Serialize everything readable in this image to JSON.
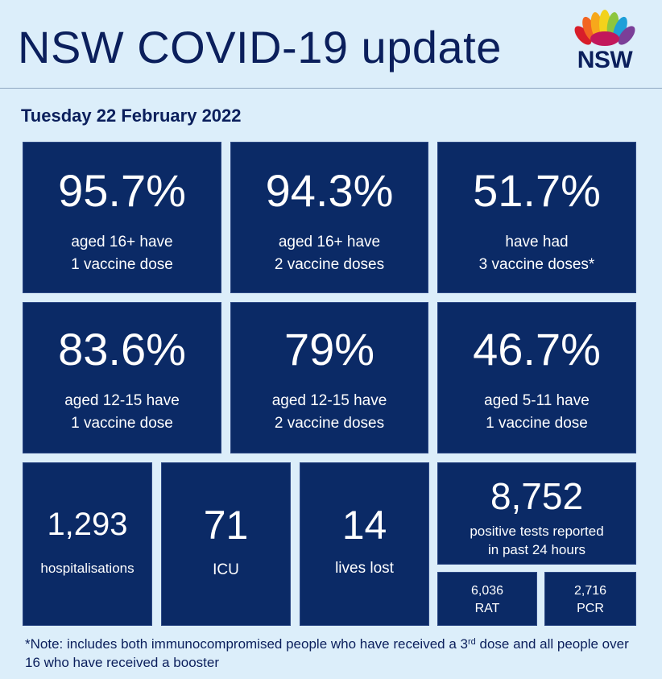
{
  "header": {
    "title": "NSW COVID-19 update",
    "logo_text": "NSW"
  },
  "date": "Tuesday 22 February 2022",
  "vaccine_tiles": [
    {
      "value": "95.7%",
      "line1": "aged 16+ have",
      "line2": "1 vaccine dose"
    },
    {
      "value": "94.3%",
      "line1": "aged 16+ have",
      "line2": "2 vaccine doses"
    },
    {
      "value": "51.7%",
      "line1": "have had",
      "line2": "3 vaccine doses*"
    },
    {
      "value": "83.6%",
      "line1": "aged 12-15 have",
      "line2": "1 vaccine dose"
    },
    {
      "value": "79%",
      "line1": "aged 12-15 have",
      "line2": "2 vaccine doses"
    },
    {
      "value": "46.7%",
      "line1": "aged 5-11 have",
      "line2": "1 vaccine dose"
    }
  ],
  "stats": {
    "hospitalisations": {
      "value": "1,293",
      "label": "hospitalisations"
    },
    "icu": {
      "value": "71",
      "label": "ICU"
    },
    "lives_lost": {
      "value": "14",
      "label": "lives lost"
    },
    "positive_tests": {
      "value": "8,752",
      "line1": "positive tests reported",
      "line2": "in past 24 hours"
    },
    "rat": {
      "value": "6,036",
      "label": "RAT"
    },
    "pcr": {
      "value": "2,716",
      "label": "PCR"
    }
  },
  "note": {
    "part1": "*Note: includes both immunocompromised  people who have received a 3",
    "sup": "rd",
    "part2": " dose and all people over 16 who have received a booster"
  },
  "colors": {
    "background": "#dceefa",
    "tile": "#0b2a66",
    "text_dark": "#0b1f5c"
  }
}
